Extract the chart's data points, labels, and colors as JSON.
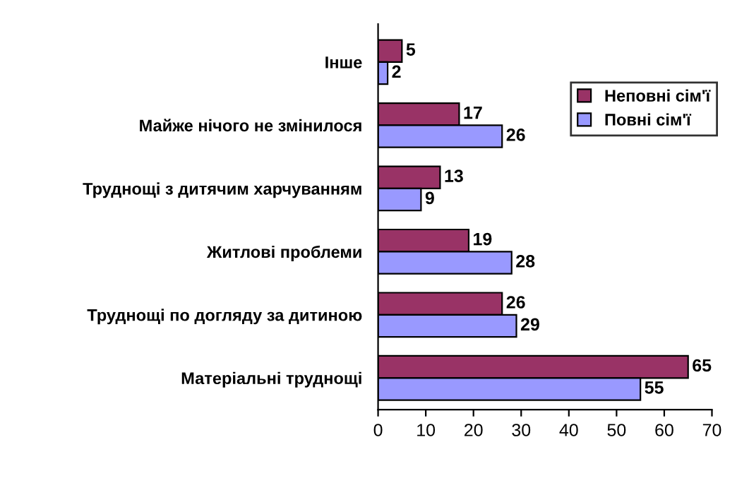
{
  "chart_data": {
    "type": "bar",
    "orientation": "horizontal",
    "categories": [
      "Інше",
      "Майже нічого не змінилося",
      "Труднощі з дитячим харчуванням",
      "Житлові проблеми",
      "Труднощі по догляду за дитиною",
      "Матеріальні труднощі"
    ],
    "series": [
      {
        "name": "Неповні сім'ї",
        "color": "#993366",
        "values": [
          5,
          17,
          13,
          19,
          26,
          65
        ]
      },
      {
        "name": "Повні сім'ї",
        "color": "#9999ff",
        "values": [
          2,
          26,
          9,
          28,
          29,
          55
        ]
      }
    ],
    "xlim": [
      0,
      70
    ],
    "xticks": [
      0,
      10,
      20,
      30,
      40,
      50,
      60,
      70
    ],
    "data_labels": true,
    "legend": "top right",
    "grid": false
  }
}
